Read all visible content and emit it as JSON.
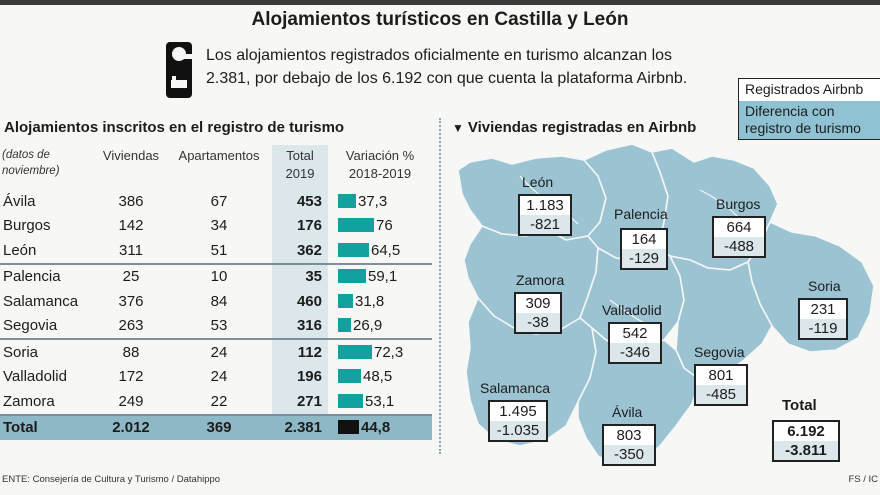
{
  "title": "Alojamientos turísticos en Castilla y León",
  "intro": {
    "line1": "Los alojamientos registrados oficialmente en turismo alcanzan los",
    "line2": "2.381, por debajo de los 6.192 con que cuenta la plataforma Airbnb."
  },
  "legend": {
    "registered": "Registrados Airbnb",
    "difference": "Diferencia con registro de turismo"
  },
  "colors": {
    "bar": "#13a1a0",
    "map": "#9cc3d2",
    "total_row": "#8fb8c6",
    "light_cell": "#dbe7eb"
  },
  "left_title": "Alojamientos inscritos en el registro de turismo",
  "right_title": "Viviendas registradas en Airbnb",
  "table_headers": {
    "note": "(datos de noviembre)",
    "viviendas": "Viviendas",
    "apartamentos": "Apartamentos",
    "total": "Total 2019",
    "variacion": "Variación % 2018-2019"
  },
  "chart_data": [
    {
      "type": "table",
      "title": "Alojamientos inscritos en el registro de turismo",
      "columns": [
        "",
        "Viviendas",
        "Apartamentos",
        "Total 2019",
        "Variación % 2018-2019"
      ],
      "rows": [
        {
          "province": "Ávila",
          "viviendas": "386",
          "apartamentos": "67",
          "total": "453",
          "variacion": "37,3",
          "variacion_value": 37.3
        },
        {
          "province": "Burgos",
          "viviendas": "142",
          "apartamentos": "34",
          "total": "176",
          "variacion": "76",
          "variacion_value": 76
        },
        {
          "province": "León",
          "viviendas": "311",
          "apartamentos": "51",
          "total": "362",
          "variacion": "64,5",
          "variacion_value": 64.5
        },
        {
          "province": "Palencia",
          "viviendas": "25",
          "apartamentos": "10",
          "total": "35",
          "variacion": "59,1",
          "variacion_value": 59.1
        },
        {
          "province": "Salamanca",
          "viviendas": "376",
          "apartamentos": "84",
          "total": "460",
          "variacion": "31,8",
          "variacion_value": 31.8
        },
        {
          "province": "Segovia",
          "viviendas": "263",
          "apartamentos": "53",
          "total": "316",
          "variacion": "26,9",
          "variacion_value": 26.9
        },
        {
          "province": "Soria",
          "viviendas": "88",
          "apartamentos": "24",
          "total": "112",
          "variacion": "72,3",
          "variacion_value": 72.3
        },
        {
          "province": "Valladolid",
          "viviendas": "172",
          "apartamentos": "24",
          "total": "196",
          "variacion": "48,5",
          "variacion_value": 48.5
        },
        {
          "province": "Zamora",
          "viviendas": "249",
          "apartamentos": "22",
          "total": "271",
          "variacion": "53,1",
          "variacion_value": 53.1
        }
      ],
      "total_row": {
        "province": "Total",
        "viviendas": "2.012",
        "apartamentos": "369",
        "total": "2.381",
        "variacion": "44,8",
        "variacion_value": 44.8
      }
    },
    {
      "type": "table",
      "title": "Viviendas registradas en Airbnb",
      "series": [
        {
          "name": "Registrados Airbnb"
        },
        {
          "name": "Diferencia con registro de turismo"
        }
      ],
      "provinces": [
        {
          "name": "León",
          "airbnb": "1.183",
          "diff": "-821"
        },
        {
          "name": "Palencia",
          "airbnb": "164",
          "diff": "-129"
        },
        {
          "name": "Burgos",
          "airbnb": "664",
          "diff": "-488"
        },
        {
          "name": "Zamora",
          "airbnb": "309",
          "diff": "-38"
        },
        {
          "name": "Valladolid",
          "airbnb": "542",
          "diff": "-346"
        },
        {
          "name": "Soria",
          "airbnb": "231",
          "diff": "-119"
        },
        {
          "name": "Segovia",
          "airbnb": "801",
          "diff": "-485"
        },
        {
          "name": "Salamanca",
          "airbnb": "1.495",
          "diff": "-1.035"
        },
        {
          "name": "Ávila",
          "airbnb": "803",
          "diff": "-350"
        }
      ],
      "total": {
        "label": "Total",
        "airbnb": "6.192",
        "diff": "-3.811"
      }
    }
  ],
  "source": "ENTE: Consejería de Cultura y Turismo / Datahippo",
  "credit": "FS / IC"
}
